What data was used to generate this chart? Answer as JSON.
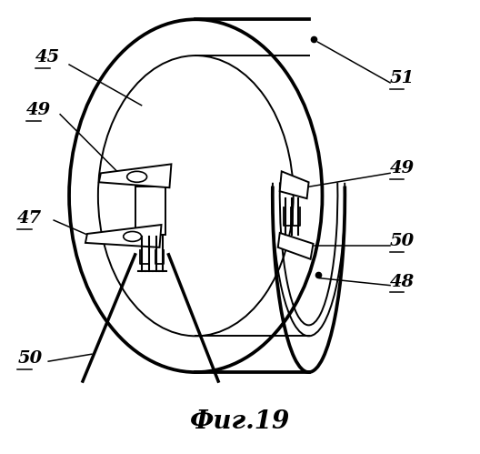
{
  "title": "Фиг.19",
  "title_fontsize": 20,
  "background_color": "#ffffff",
  "line_color": "#000000",
  "lw_main": 2.2,
  "lw_thin": 1.4,
  "lw_label": 1.1
}
